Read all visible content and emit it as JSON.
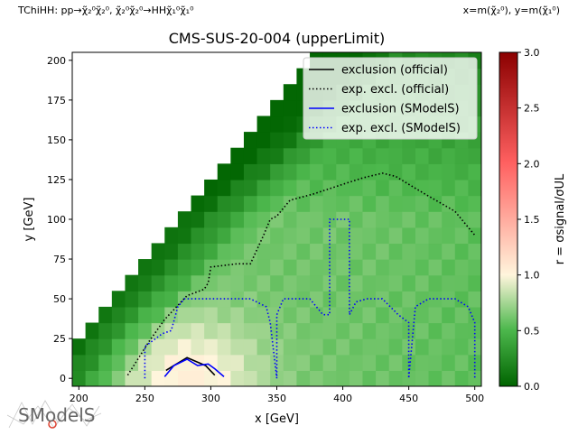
{
  "header": {
    "process": "TChiHH: pp→χ̃₂⁰χ̃₂⁰, χ̃₂⁰χ̃₂⁰→HHχ̃₁⁰χ̃₁⁰",
    "axes_def": "x=m(χ̃₂⁰), y=m(χ̃₁⁰)"
  },
  "logo": {
    "text": "SModelS"
  },
  "colors": {
    "official": "#000000",
    "smodels": "#0000ff"
  },
  "chart_data": {
    "type": "heatmap",
    "title": "CMS-SUS-20-004 (upperLimit)",
    "xlabel": "x [GeV]",
    "ylabel": "y [GeV]",
    "colorbar_label": "r = σsignal/σUL",
    "xlim": [
      195,
      505
    ],
    "ylim": [
      -5,
      205
    ],
    "clim": [
      0,
      3
    ],
    "xticks": [
      200,
      250,
      300,
      350,
      400,
      450,
      500
    ],
    "yticks": [
      0,
      25,
      50,
      75,
      100,
      125,
      150,
      175,
      200
    ],
    "cticks": [
      0.0,
      0.5,
      1.0,
      1.5,
      2.0,
      2.5,
      3.0
    ],
    "grid": false,
    "legend_position": "top-right",
    "heatmap_r_estimate": [
      {
        "region": "low mass x 240-330, y 0-40",
        "r": 0.9
      },
      {
        "region": "diagonal strip near y = x - 200",
        "r": 0.05
      },
      {
        "region": "x 300-500, y 50-100",
        "r": 0.65
      },
      {
        "region": "x 300-500, y 150-200",
        "r": 0.15
      }
    ],
    "series": [
      {
        "name": "exclusion (official)",
        "style": "solid",
        "color": "#000000",
        "x": [
          266,
          272,
          282,
          296,
          303
        ],
        "y": [
          5,
          8,
          13,
          8,
          2
        ]
      },
      {
        "name": "exp. excl. (official)",
        "style": "dotted",
        "color": "#000000",
        "x": [
          237,
          253,
          265,
          282,
          295,
          298,
          300,
          320,
          330,
          340,
          345,
          350,
          360,
          378,
          400,
          415,
          430,
          440,
          460,
          485,
          500
        ],
        "y": [
          2,
          23,
          37,
          52,
          56,
          60,
          70,
          72,
          72,
          90,
          100,
          102,
          112,
          116,
          122,
          126,
          129,
          127,
          117,
          105,
          90
        ]
      },
      {
        "name": "exclusion (SModelS)",
        "style": "solid",
        "color": "#0000ff",
        "x": [
          265,
          272,
          282,
          290,
          298,
          303,
          310
        ],
        "y": [
          1,
          8,
          12,
          8,
          9,
          6,
          1
        ]
      },
      {
        "name": "exp. excl. (SModelS)",
        "style": "dotted",
        "color": "#0000ff",
        "x": [
          250,
          250,
          263,
          270,
          275,
          280,
          300,
          330,
          342,
          345,
          350,
          350,
          350,
          355,
          362,
          375,
          385,
          390,
          390,
          405,
          405,
          410,
          418,
          430,
          442,
          450,
          450,
          455,
          465,
          485,
          495,
          500,
          500
        ],
        "y": [
          0,
          20,
          28,
          30,
          45,
          50,
          50,
          50,
          45,
          35,
          0,
          35,
          40,
          50,
          50,
          50,
          40,
          40,
          100,
          100,
          40,
          48,
          50,
          50,
          40,
          35,
          0,
          45,
          50,
          50,
          45,
          35,
          0
        ]
      }
    ]
  }
}
